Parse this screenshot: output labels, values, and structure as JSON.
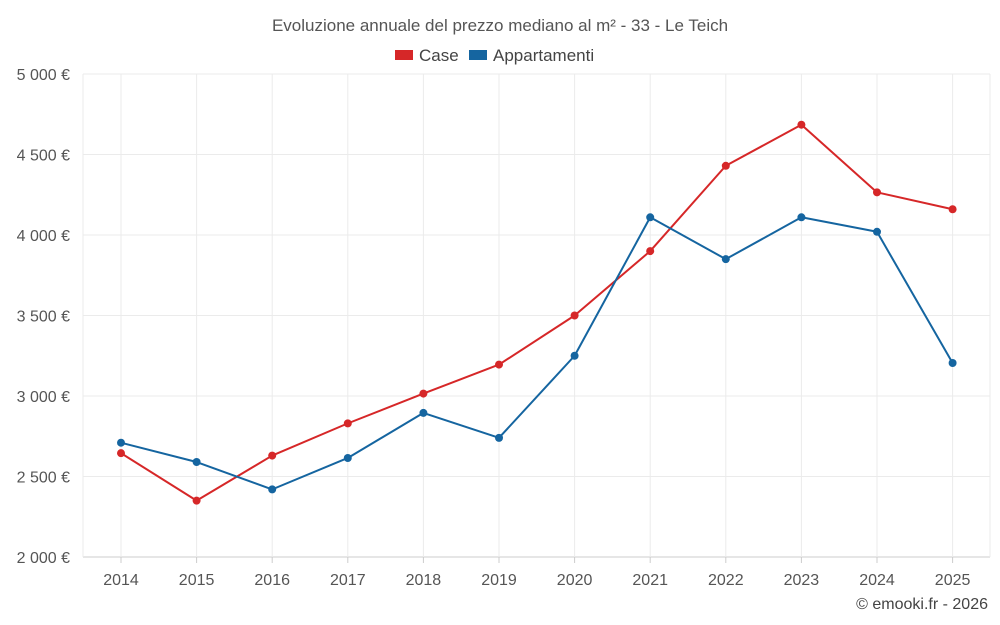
{
  "chart_data": {
    "type": "line",
    "title": "Evoluzione annuale del prezzo mediano al m² - 33 - Le Teich",
    "categories": [
      "2014",
      "2015",
      "2016",
      "2017",
      "2018",
      "2019",
      "2020",
      "2021",
      "2022",
      "2023",
      "2024",
      "2025"
    ],
    "ylim": [
      2000,
      5000
    ],
    "yticks": [
      2000,
      2500,
      3000,
      3500,
      4000,
      4500,
      5000
    ],
    "ytick_labels": [
      "2 000 €",
      "2 500 €",
      "3 000 €",
      "3 500 €",
      "4 000 €",
      "4 500 €",
      "5 000 €"
    ],
    "legend_position": "top-center",
    "grid": true,
    "series": [
      {
        "name": "Case",
        "color": "#d62728",
        "values": [
          2645,
          2350,
          2630,
          2830,
          3015,
          3195,
          3500,
          3900,
          4430,
          4685,
          4265,
          4160
        ]
      },
      {
        "name": "Appartamenti",
        "color": "#1565a0",
        "values": [
          2710,
          2590,
          2420,
          2615,
          2895,
          2740,
          3250,
          4110,
          3850,
          4110,
          4020,
          3205
        ]
      }
    ]
  },
  "credit": "© emooki.fr - 2026"
}
